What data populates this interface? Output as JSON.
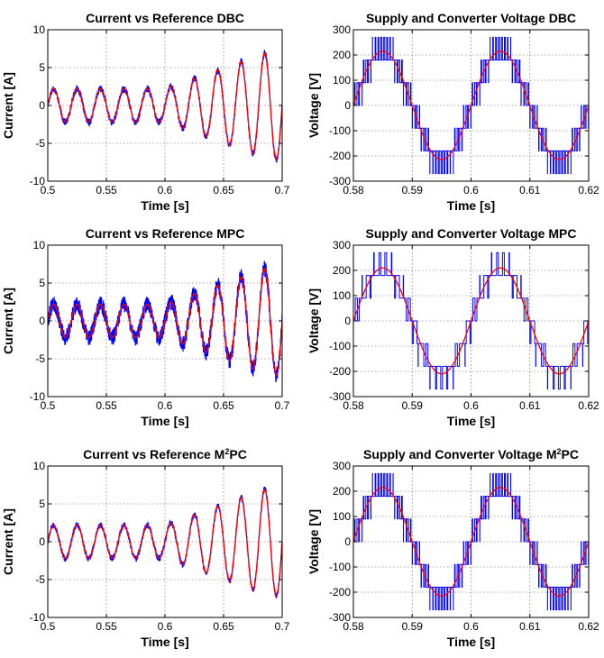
{
  "chart_data": [
    {
      "type": "line",
      "title": "Current vs Reference DBC",
      "title_sup": "",
      "title_after": "",
      "xlabel": "Time [s]",
      "ylabel": "Current [A]",
      "xlim": [
        0.5,
        0.7
      ],
      "ylim": [
        -10,
        10
      ],
      "xticks": [
        0.5,
        0.55,
        0.6,
        0.65,
        0.7
      ],
      "xtick_labels": [
        "0.5",
        "0.55",
        "0.6",
        "0.65",
        "0.7"
      ],
      "yticks": [
        -10,
        -5,
        0,
        5,
        10
      ],
      "ytick_labels": [
        "-10",
        "-5",
        "0",
        "5",
        "10"
      ],
      "grid": true,
      "series": [
        {
          "kind": "current",
          "color": "#0000ff",
          "frequency_hz": 50,
          "amplitude_before": 2.2,
          "amplitude_after": 7.2,
          "step_time": 0.6,
          "ramp_end": 0.69,
          "ripple": 0.45
        },
        {
          "kind": "reference",
          "color": "#ff0000",
          "frequency_hz": 50,
          "amplitude_before": 2.2,
          "amplitude_after": 7.2,
          "step_time": 0.6,
          "ramp_end": 0.69
        }
      ]
    },
    {
      "type": "line",
      "title": "Supply and Converter Voltage DBC",
      "title_sup": "",
      "title_after": "",
      "xlabel": "Time [s]",
      "ylabel": "Voltage [V]",
      "xlim": [
        0.58,
        0.62
      ],
      "ylim": [
        -300,
        300
      ],
      "xticks": [
        0.58,
        0.59,
        0.6,
        0.61,
        0.62
      ],
      "xtick_labels": [
        "0.58",
        "0.59",
        "0.6",
        "0.61",
        "0.62"
      ],
      "yticks": [
        -300,
        -200,
        -100,
        0,
        100,
        200,
        300
      ],
      "ytick_labels": [
        "-300",
        "-200",
        "-100",
        "0",
        "100",
        "200",
        "300"
      ],
      "grid": true,
      "series": [
        {
          "kind": "converter",
          "color": "#0000ff",
          "frequency_hz": 50,
          "levels": [
            -270,
            -180,
            -90,
            0,
            90,
            180,
            270
          ],
          "amplitude": 215,
          "switching_period": 0.0005
        },
        {
          "kind": "supply",
          "color": "#ff0000",
          "frequency_hz": 50,
          "amplitude": 215
        }
      ]
    },
    {
      "type": "line",
      "title": "Current vs Reference MPC",
      "title_sup": "",
      "title_after": "",
      "xlabel": "Time [s]",
      "ylabel": "Current [A]",
      "xlim": [
        0.5,
        0.7
      ],
      "ylim": [
        -10,
        10
      ],
      "xticks": [
        0.5,
        0.55,
        0.6,
        0.65,
        0.7
      ],
      "xtick_labels": [
        "0.5",
        "0.55",
        "0.6",
        "0.65",
        "0.7"
      ],
      "yticks": [
        -10,
        -5,
        0,
        5,
        10
      ],
      "ytick_labels": [
        "-10",
        "-5",
        "0",
        "5",
        "10"
      ],
      "grid": true,
      "series": [
        {
          "kind": "current",
          "color": "#0000ff",
          "frequency_hz": 50,
          "amplitude_before": 2.2,
          "amplitude_after": 7.2,
          "step_time": 0.6,
          "ramp_end": 0.69,
          "ripple": 1.1
        },
        {
          "kind": "reference",
          "color": "#ff0000",
          "frequency_hz": 50,
          "amplitude_before": 2.2,
          "amplitude_after": 7.2,
          "step_time": 0.6,
          "ramp_end": 0.69
        }
      ]
    },
    {
      "type": "line",
      "title": "Supply and Converter Voltage MPC",
      "title_sup": "",
      "title_after": "",
      "xlabel": "Time [s]",
      "ylabel": "Voltage [V]",
      "xlim": [
        0.58,
        0.62
      ],
      "ylim": [
        -300,
        300
      ],
      "xticks": [
        0.58,
        0.59,
        0.6,
        0.61,
        0.62
      ],
      "xtick_labels": [
        "0.58",
        "0.59",
        "0.6",
        "0.61",
        "0.62"
      ],
      "yticks": [
        -300,
        -200,
        -100,
        0,
        100,
        200,
        300
      ],
      "ytick_labels": [
        "-300",
        "-200",
        "-100",
        "0",
        "100",
        "200",
        "300"
      ],
      "grid": true,
      "series": [
        {
          "kind": "converter",
          "color": "#0000ff",
          "frequency_hz": 50,
          "levels": [
            -270,
            -180,
            -90,
            0,
            90,
            180,
            270
          ],
          "amplitude": 210,
          "switching_period": 0.001
        },
        {
          "kind": "supply",
          "color": "#ff0000",
          "frequency_hz": 50,
          "amplitude": 210
        }
      ]
    },
    {
      "type": "line",
      "title": "Current vs Reference M",
      "title_sup": "2",
      "title_after": "PC",
      "xlabel": "Time [s]",
      "ylabel": "Current [A]",
      "xlim": [
        0.5,
        0.7
      ],
      "ylim": [
        -10,
        10
      ],
      "xticks": [
        0.5,
        0.55,
        0.6,
        0.65,
        0.7
      ],
      "xtick_labels": [
        "0.5",
        "0.55",
        "0.6",
        "0.65",
        "0.7"
      ],
      "yticks": [
        -10,
        -5,
        0,
        5,
        10
      ],
      "ytick_labels": [
        "-10",
        "-5",
        "0",
        "5",
        "10"
      ],
      "grid": true,
      "series": [
        {
          "kind": "current",
          "color": "#0000ff",
          "frequency_hz": 50,
          "amplitude_before": 2.2,
          "amplitude_after": 7.2,
          "step_time": 0.6,
          "ramp_end": 0.69,
          "ripple": 0.4
        },
        {
          "kind": "reference",
          "color": "#ff0000",
          "frequency_hz": 50,
          "amplitude_before": 2.2,
          "amplitude_after": 7.2,
          "step_time": 0.6,
          "ramp_end": 0.69
        }
      ]
    },
    {
      "type": "line",
      "title": "Supply and Converter Voltage M",
      "title_sup": "2",
      "title_after": "PC",
      "xlabel": "Time [s]",
      "ylabel": "Voltage [V]",
      "xlim": [
        0.58,
        0.62
      ],
      "ylim": [
        -300,
        300
      ],
      "xticks": [
        0.58,
        0.59,
        0.6,
        0.61,
        0.62
      ],
      "xtick_labels": [
        "0.58",
        "0.59",
        "0.6",
        "0.61",
        "0.62"
      ],
      "yticks": [
        -300,
        -200,
        -100,
        0,
        100,
        200,
        300
      ],
      "ytick_labels": [
        "-300",
        "-200",
        "-100",
        "0",
        "100",
        "200",
        "300"
      ],
      "grid": true,
      "series": [
        {
          "kind": "converter",
          "color": "#0000ff",
          "frequency_hz": 50,
          "levels": [
            -270,
            -180,
            -90,
            0,
            90,
            180,
            270
          ],
          "amplitude": 215,
          "switching_period": 0.0005
        },
        {
          "kind": "supply",
          "color": "#ff0000",
          "frequency_hz": 50,
          "amplitude": 215
        }
      ]
    }
  ]
}
